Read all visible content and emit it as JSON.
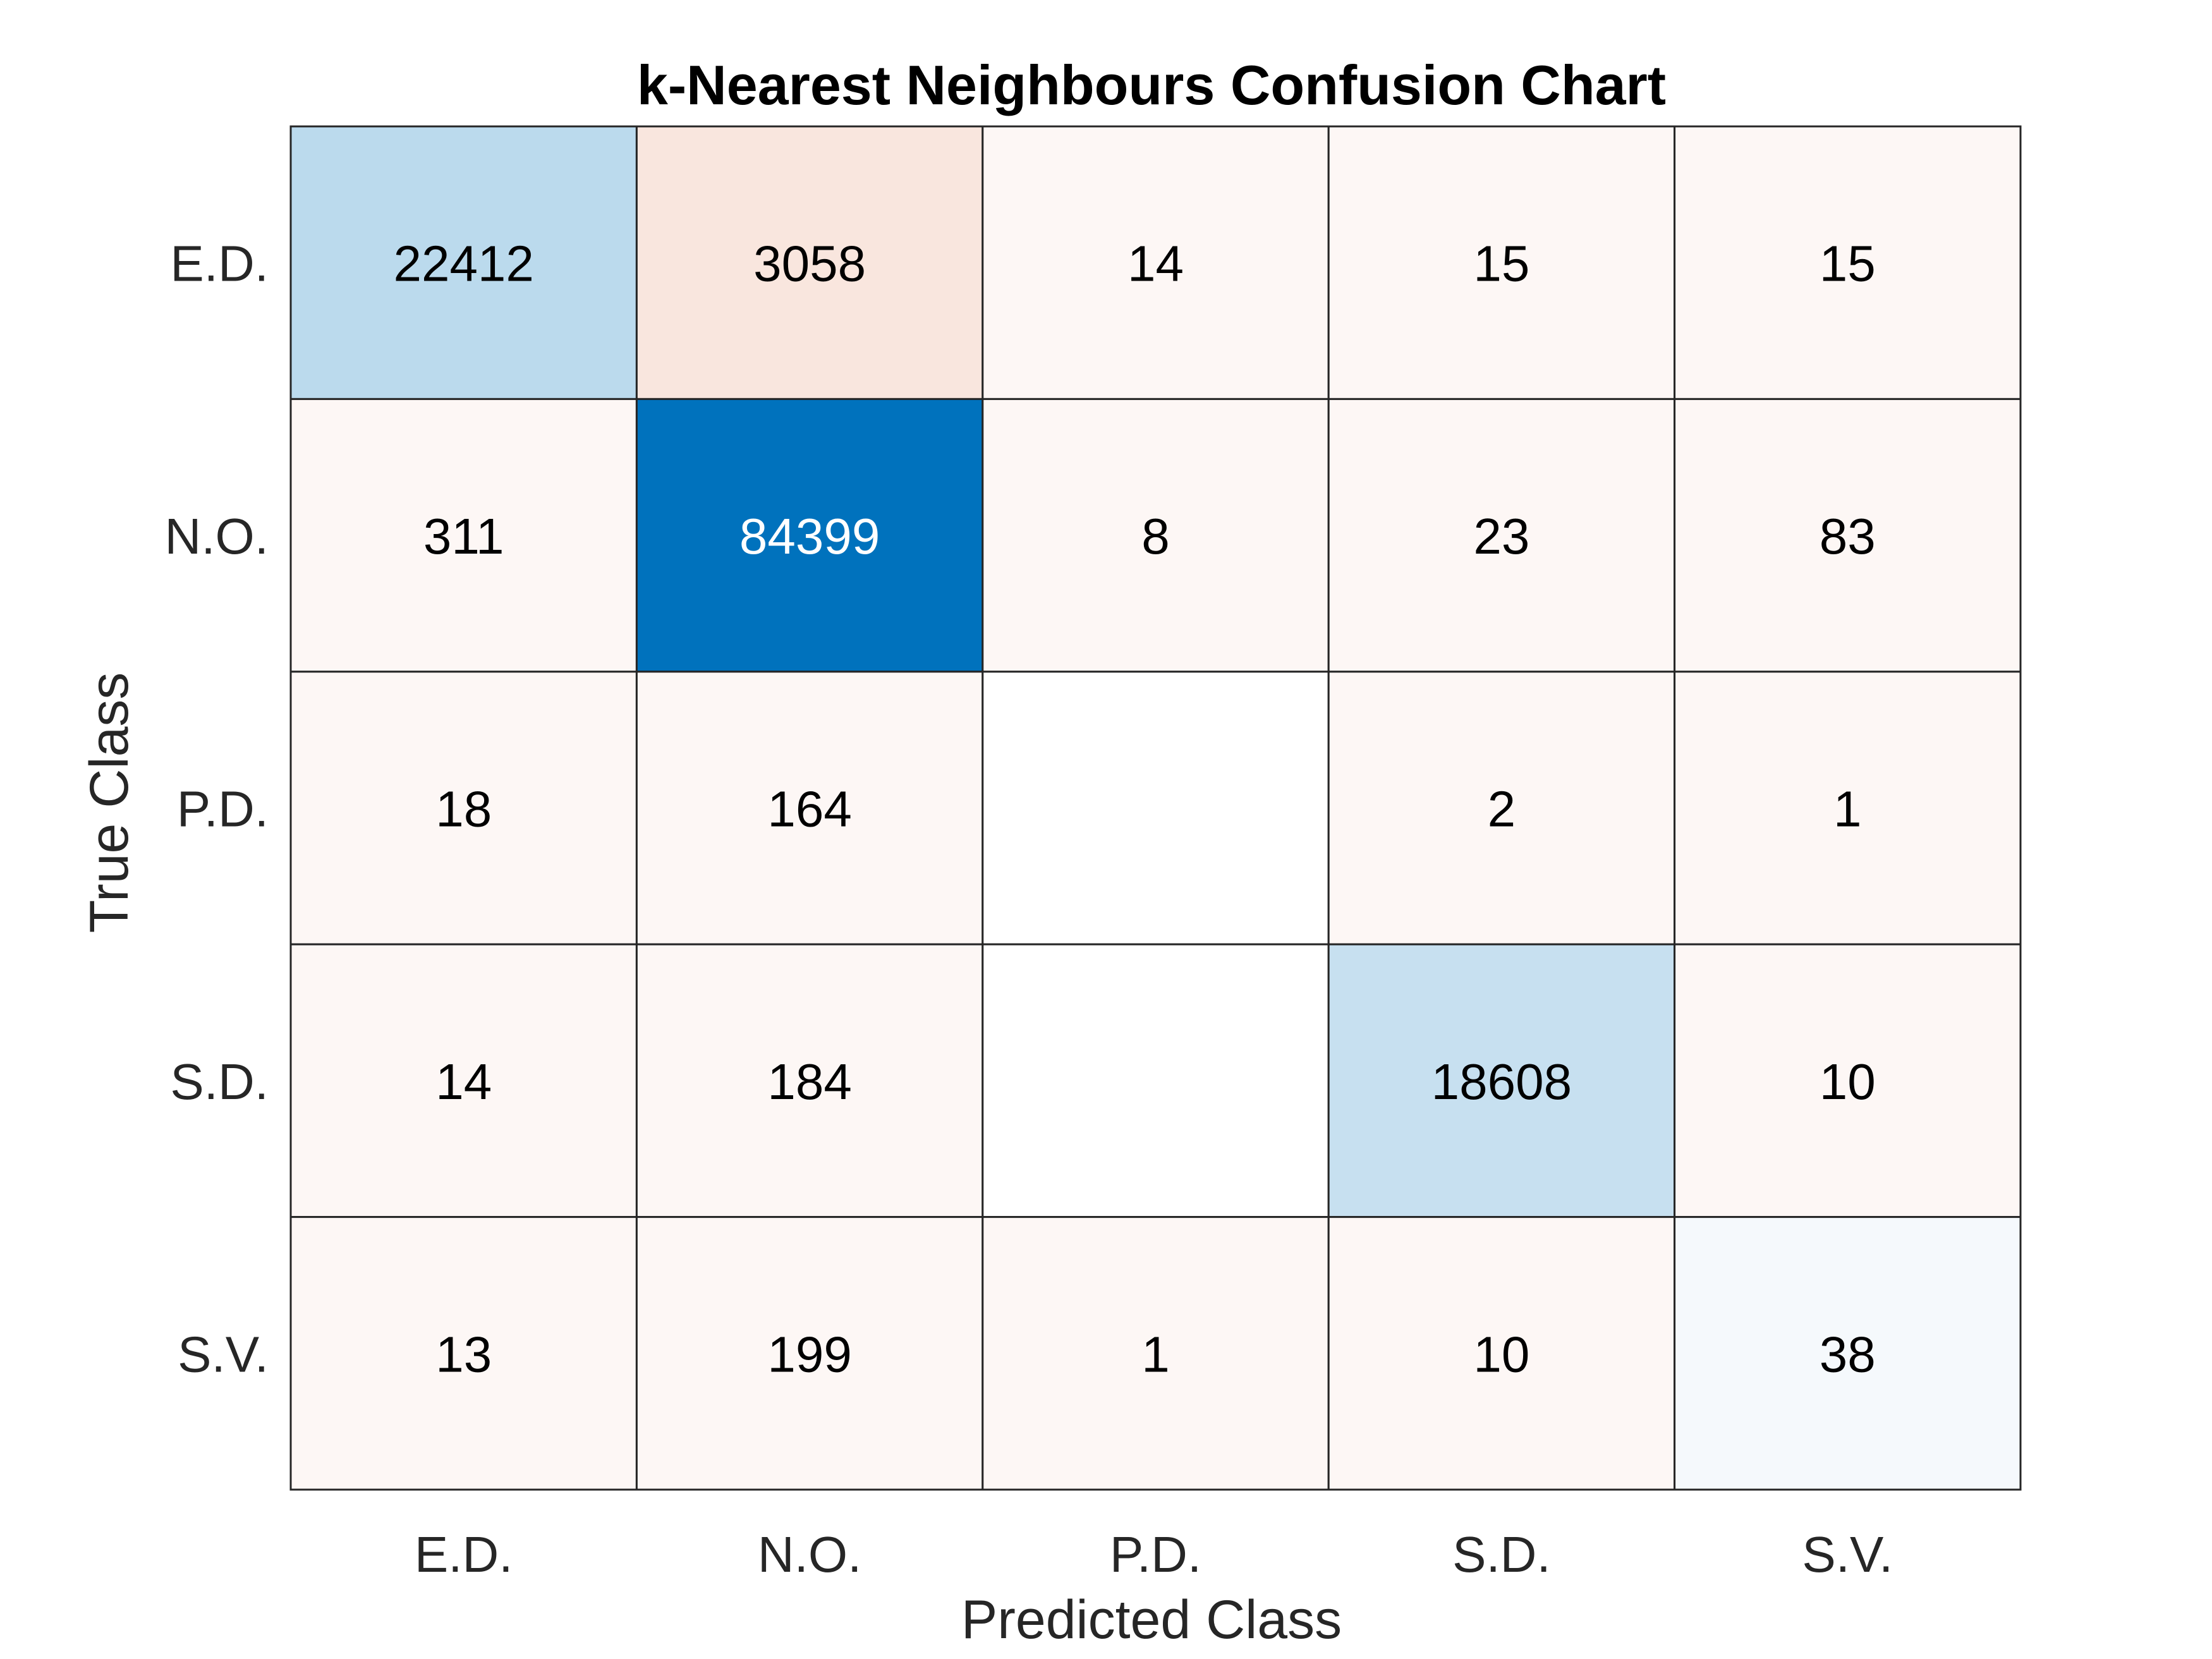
{
  "chart_data": {
    "type": "heatmap",
    "title": "k-Nearest Neighbours Confusion Chart",
    "xlabel": "Predicted Class",
    "ylabel": "True Class",
    "x_categories": [
      "E.D.",
      "N.O.",
      "P.D.",
      "S.D.",
      "S.V."
    ],
    "y_categories": [
      "E.D.",
      "N.O.",
      "P.D.",
      "S.D.",
      "S.V."
    ],
    "values": [
      [
        22412,
        3058,
        14,
        15,
        15
      ],
      [
        311,
        84399,
        8,
        23,
        83
      ],
      [
        18,
        164,
        null,
        2,
        1
      ],
      [
        14,
        184,
        null,
        18608,
        10
      ],
      [
        13,
        199,
        1,
        10,
        38
      ]
    ],
    "colors": {
      "diagonal_max": "#0072bd",
      "diagonal_min": "#ffffff",
      "off_diagonal_max": "#d95319",
      "off_diagonal_min": "#ffffff",
      "grid_line": "#262626",
      "text_dark": "#000000",
      "text_light": "#ffffff"
    }
  }
}
